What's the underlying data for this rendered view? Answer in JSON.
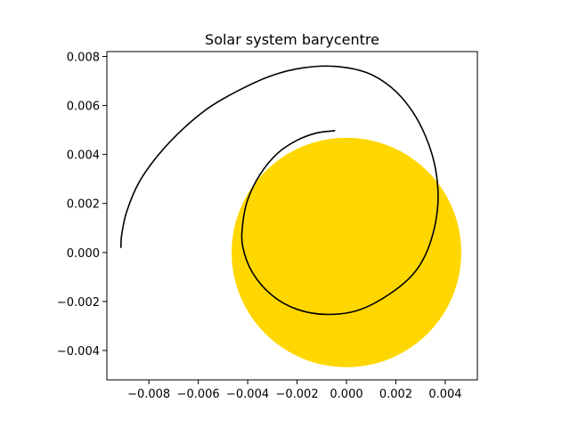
{
  "chart_data": {
    "type": "line",
    "title": "Solar system barycentre",
    "xlabel": "",
    "ylabel": "",
    "xlim": [
      -0.0097,
      0.0053
    ],
    "ylim": [
      -0.0052,
      0.0082
    ],
    "grid": false,
    "xticks": [
      -0.008,
      -0.006,
      -0.004,
      -0.002,
      0.0,
      0.002,
      0.004
    ],
    "xtick_labels": [
      "−0.008",
      "−0.006",
      "−0.004",
      "−0.002",
      "0.000",
      "0.002",
      "0.004"
    ],
    "yticks": [
      -0.004,
      -0.002,
      0.0,
      0.002,
      0.004,
      0.006,
      0.008
    ],
    "ytick_labels": [
      "−0.004",
      "−0.002",
      "0.000",
      "0.002",
      "0.004",
      "0.006",
      "0.008"
    ],
    "sun": {
      "center": [
        0.0,
        0.0
      ],
      "radius": 0.00465,
      "color": "#ffd700"
    },
    "path_color": "#000000",
    "series": [
      {
        "x": [
          -0.00048,
          -0.0012,
          -0.002,
          -0.0028,
          -0.0035,
          -0.004,
          -0.0042,
          -0.0042,
          -0.0038,
          -0.003,
          -0.002,
          -0.0008,
          0.0005,
          0.0018,
          0.0028,
          0.0034,
          0.0037,
          0.0036,
          0.0032,
          0.0026,
          0.0018,
          0.0008,
          -0.0005,
          -0.0018,
          -0.003,
          -0.0042,
          -0.0055,
          -0.0066,
          -0.0076,
          -0.0084,
          -0.0089,
          -0.0091,
          -0.00913
        ],
        "y": [
          0.00497,
          0.00488,
          0.00458,
          0.00404,
          0.00318,
          0.00215,
          0.00117,
          0.00024,
          -0.00083,
          -0.00176,
          -0.00232,
          -0.00253,
          -0.00235,
          -0.00166,
          -0.00076,
          0.00042,
          0.00196,
          0.00344,
          0.00475,
          0.00586,
          0.00675,
          0.00735,
          0.0076,
          0.00753,
          0.00723,
          0.0067,
          0.00596,
          0.00506,
          0.004,
          0.00286,
          0.00166,
          0.00072,
          0.00021
        ]
      }
    ]
  }
}
